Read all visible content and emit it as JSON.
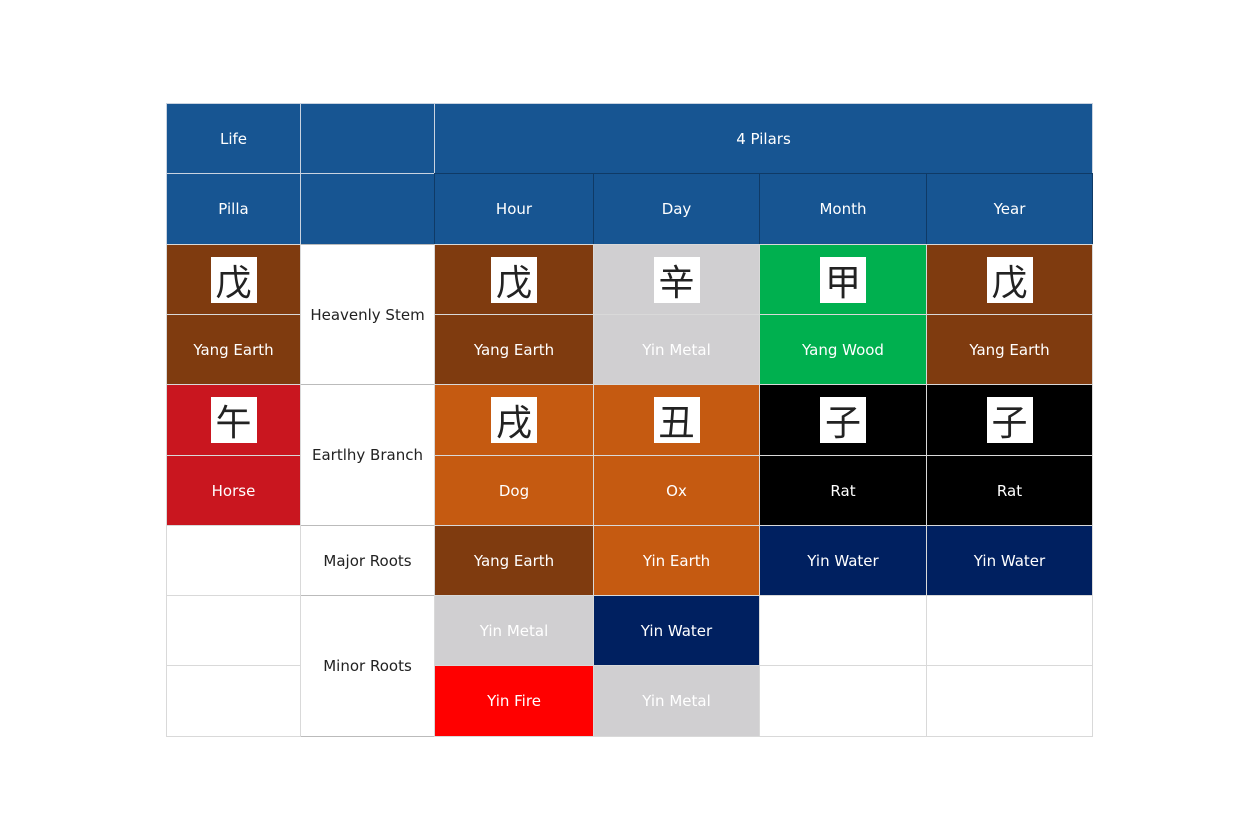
{
  "header": {
    "life": "Life",
    "pilla": "Pilla",
    "four_pillars": "4 Pilars",
    "columns": [
      "Hour",
      "Day",
      "Month",
      "Year"
    ]
  },
  "life_pillar": {
    "stem": {
      "char": "戊",
      "element": "Yang Earth"
    },
    "branch": {
      "char": "午",
      "animal": "Horse"
    }
  },
  "row_labels": [
    "Heavenly Stem",
    "Eartlhy Branch",
    "Major Roots",
    "Minor Roots"
  ],
  "pillars": [
    {
      "stem": {
        "char": "戊",
        "element": "Yang Earth"
      },
      "branch": {
        "char": "戌",
        "animal": "Dog"
      },
      "major_root": "Yang Earth",
      "minor_roots": [
        "Yin Metal",
        "Yin Fire"
      ]
    },
    {
      "stem": {
        "char": "辛",
        "element": "Yin Metal"
      },
      "branch": {
        "char": "丑",
        "animal": "Ox"
      },
      "major_root": "Yin Earth",
      "minor_roots": [
        "Yin Water",
        "Yin Metal"
      ]
    },
    {
      "stem": {
        "char": "甲",
        "element": "Yang Wood"
      },
      "branch": {
        "char": "子",
        "animal": "Rat"
      },
      "major_root": "Yin Water",
      "minor_roots": []
    },
    {
      "stem": {
        "char": "戊",
        "element": "Yang Earth"
      },
      "branch": {
        "char": "子",
        "animal": "Rat"
      },
      "major_root": "Yin Water",
      "minor_roots": []
    }
  ]
}
